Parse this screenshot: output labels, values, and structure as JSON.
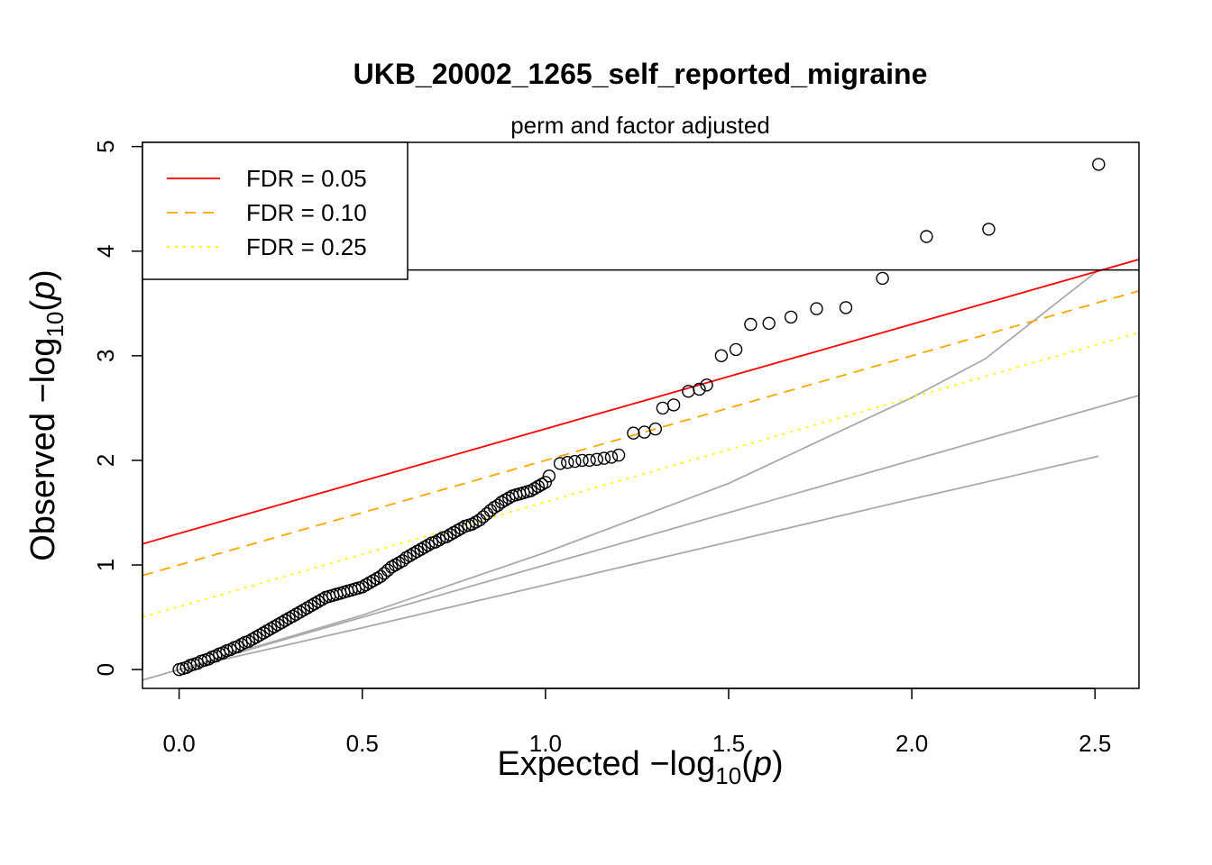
{
  "chart_data": {
    "type": "scatter",
    "title": "UKB_20002_1265_self_reported_migraine",
    "subtitle": "perm and factor adjusted",
    "xlabel": {
      "prefix": "Expected  −log",
      "sub": "10",
      "open": "(",
      "var": "p",
      "close": ")"
    },
    "ylabel": {
      "prefix": "Observed  −log",
      "sub": "10",
      "open": "(",
      "var": "p",
      "close": ")"
    },
    "xlim": [
      -0.1,
      2.62
    ],
    "ylim": [
      -0.18,
      5.04
    ],
    "x_ticks": [
      {
        "value": 0.0,
        "label": "0.0"
      },
      {
        "value": 0.5,
        "label": "0.5"
      },
      {
        "value": 1.0,
        "label": "1.0"
      },
      {
        "value": 1.5,
        "label": "1.5"
      },
      {
        "value": 2.0,
        "label": "2.0"
      },
      {
        "value": 2.5,
        "label": "2.5"
      }
    ],
    "y_ticks": [
      {
        "value": 0,
        "label": "0"
      },
      {
        "value": 1,
        "label": "1"
      },
      {
        "value": 2,
        "label": "2"
      },
      {
        "value": 3,
        "label": "3"
      },
      {
        "value": 4,
        "label": "4"
      },
      {
        "value": 5,
        "label": "5"
      }
    ],
    "legend": {
      "placement": "top-left",
      "entries": [
        {
          "label": "FDR = 0.05",
          "color": "#ff0000",
          "dash": "solid"
        },
        {
          "label": "FDR = 0.10",
          "color": "#ffa500",
          "dash": "dashed"
        },
        {
          "label": "FDR = 0.25",
          "color": "#ffff00",
          "dash": "dotted"
        }
      ]
    },
    "fdr_lines": [
      {
        "name": "FDR = 0.05",
        "color": "#ff0000",
        "dash": "solid",
        "intercept": 1.301,
        "slope": 1.0
      },
      {
        "name": "FDR = 0.10",
        "color": "#ffa500",
        "dash": "dashed",
        "intercept": 1.0,
        "slope": 1.0
      },
      {
        "name": "FDR = 0.25",
        "color": "#ffff00",
        "dash": "dotted",
        "intercept": 0.602,
        "slope": 1.0
      }
    ],
    "threshold_y": 3.82,
    "reference_curves": [
      {
        "name": "y = x",
        "color": "#aaaaaa",
        "x": [
          -0.1,
          2.62
        ],
        "y": [
          -0.1,
          2.62
        ]
      },
      {
        "name": "upper envelope",
        "color": "#aaaaaa",
        "x": [
          0,
          0.5,
          1.0,
          1.5,
          2.0,
          2.2,
          2.51
        ],
        "y": [
          0,
          0.52,
          1.12,
          1.78,
          2.6,
          2.97,
          3.82
        ]
      },
      {
        "name": "lower envelope",
        "color": "#aaaaaa",
        "x": [
          0,
          0.5,
          1.0,
          1.5,
          2.0,
          2.51
        ],
        "y": [
          0,
          0.4,
          0.81,
          1.22,
          1.63,
          2.04
        ]
      }
    ],
    "points": {
      "x": [
        0.0,
        0.01,
        0.02,
        0.03,
        0.04,
        0.05,
        0.06,
        0.07,
        0.08,
        0.09,
        0.1,
        0.11,
        0.12,
        0.13,
        0.14,
        0.15,
        0.16,
        0.17,
        0.18,
        0.19,
        0.2,
        0.21,
        0.22,
        0.23,
        0.24,
        0.25,
        0.26,
        0.27,
        0.28,
        0.29,
        0.3,
        0.31,
        0.32,
        0.33,
        0.34,
        0.35,
        0.36,
        0.37,
        0.38,
        0.39,
        0.4,
        0.41,
        0.42,
        0.43,
        0.44,
        0.45,
        0.46,
        0.47,
        0.48,
        0.49,
        0.5,
        0.51,
        0.52,
        0.53,
        0.54,
        0.55,
        0.56,
        0.57,
        0.58,
        0.59,
        0.6,
        0.61,
        0.62,
        0.63,
        0.64,
        0.65,
        0.66,
        0.67,
        0.68,
        0.69,
        0.7,
        0.71,
        0.72,
        0.73,
        0.74,
        0.75,
        0.76,
        0.77,
        0.78,
        0.79,
        0.8,
        0.81,
        0.82,
        0.83,
        0.84,
        0.85,
        0.86,
        0.87,
        0.88,
        0.89,
        0.9,
        0.91,
        0.92,
        0.93,
        0.94,
        0.95,
        0.96,
        0.97,
        0.98,
        0.99,
        1.0,
        1.01,
        1.04,
        1.06,
        1.08,
        1.1,
        1.12,
        1.14,
        1.16,
        1.18,
        1.2,
        1.24,
        1.27,
        1.3,
        1.32,
        1.35,
        1.39,
        1.42,
        1.44,
        1.48,
        1.52,
        1.56,
        1.61,
        1.67,
        1.74,
        1.82,
        1.92,
        2.04,
        2.21,
        2.51
      ],
      "y": [
        0.0,
        0.01,
        0.02,
        0.04,
        0.05,
        0.06,
        0.08,
        0.09,
        0.1,
        0.12,
        0.13,
        0.15,
        0.16,
        0.18,
        0.19,
        0.21,
        0.22,
        0.24,
        0.26,
        0.27,
        0.29,
        0.31,
        0.33,
        0.35,
        0.37,
        0.39,
        0.41,
        0.43,
        0.45,
        0.47,
        0.49,
        0.51,
        0.53,
        0.55,
        0.57,
        0.59,
        0.61,
        0.63,
        0.65,
        0.67,
        0.69,
        0.7,
        0.71,
        0.72,
        0.73,
        0.74,
        0.75,
        0.76,
        0.77,
        0.78,
        0.79,
        0.81,
        0.83,
        0.85,
        0.87,
        0.89,
        0.92,
        0.95,
        0.98,
        1.0,
        1.02,
        1.04,
        1.07,
        1.09,
        1.11,
        1.13,
        1.15,
        1.17,
        1.19,
        1.21,
        1.22,
        1.24,
        1.26,
        1.27,
        1.29,
        1.31,
        1.33,
        1.35,
        1.37,
        1.38,
        1.39,
        1.41,
        1.43,
        1.46,
        1.49,
        1.52,
        1.55,
        1.57,
        1.6,
        1.62,
        1.64,
        1.66,
        1.67,
        1.68,
        1.69,
        1.7,
        1.71,
        1.73,
        1.75,
        1.77,
        1.79,
        1.85,
        1.97,
        1.98,
        1.99,
        2.0,
        2.0,
        2.01,
        2.02,
        2.03,
        2.05,
        2.26,
        2.27,
        2.3,
        2.5,
        2.53,
        2.66,
        2.68,
        2.72,
        3.0,
        3.06,
        3.3,
        3.31,
        3.37,
        3.45,
        3.46,
        3.74,
        4.14,
        4.21,
        4.83
      ]
    }
  }
}
